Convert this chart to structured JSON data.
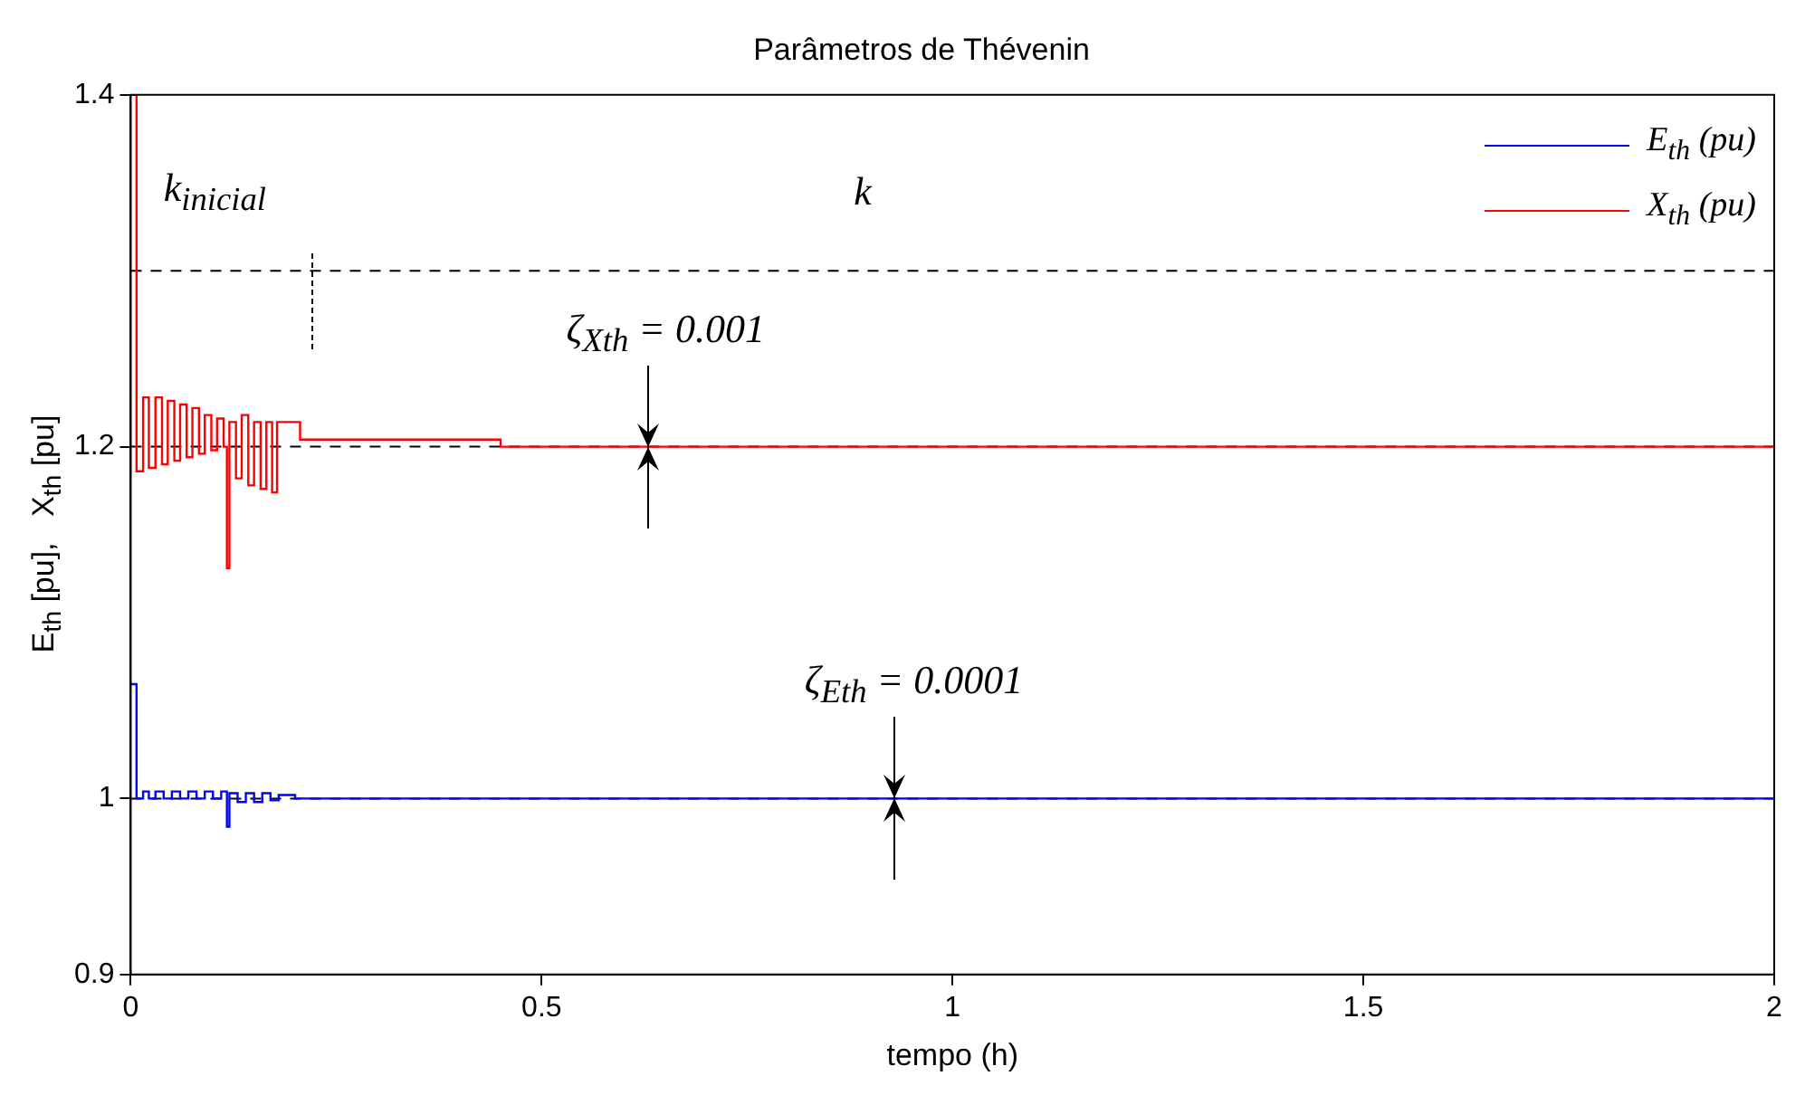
{
  "chart_data": {
    "type": "step",
    "title": "Parâmetros de Thévenin",
    "xlabel": "tempo (h)",
    "ylabel": "E$_{th}$ [pu],   X$_{th}$ [pu]",
    "xlim": [
      0,
      2
    ],
    "xticks": [
      0,
      0.5,
      1,
      1.5,
      2
    ],
    "ylim": [
      0.9,
      1.4
    ],
    "yticks": [
      0.9,
      1,
      1.2,
      1.4
    ],
    "grid": false,
    "legend": "top right",
    "line_style": "solid",
    "series": [
      {
        "name": "E$_{th}$ (pu)",
        "color": "#0000ff",
        "x": [
          0,
          0.007,
          0.015,
          0.022,
          0.03,
          0.04,
          0.05,
          0.06,
          0.07,
          0.08,
          0.09,
          0.1,
          0.11,
          0.117,
          0.12,
          0.13,
          0.14,
          0.15,
          0.16,
          0.17,
          0.18,
          0.19,
          0.2,
          2
        ],
        "values": [
          1.065,
          1.0,
          1.004,
          1.0,
          1.004,
          1.0,
          1.004,
          1.0,
          1.004,
          1.0,
          1.004,
          1.0,
          1.004,
          0.984,
          1.003,
          0.998,
          1.003,
          0.998,
          1.003,
          0.999,
          1.002,
          1.002,
          1.0,
          1.0
        ]
      },
      {
        "name": "X$_{th}$ (pu)",
        "color": "#ff0000",
        "x": [
          0,
          0.007,
          0.015,
          0.022,
          0.03,
          0.038,
          0.045,
          0.053,
          0.06,
          0.068,
          0.075,
          0.083,
          0.09,
          0.098,
          0.105,
          0.113,
          0.117,
          0.12,
          0.128,
          0.135,
          0.143,
          0.15,
          0.158,
          0.165,
          0.172,
          0.178,
          0.183,
          0.206,
          0.45,
          2
        ],
        "values": [
          1.4,
          1.186,
          1.228,
          1.188,
          1.228,
          1.19,
          1.226,
          1.192,
          1.224,
          1.194,
          1.222,
          1.196,
          1.218,
          1.198,
          1.216,
          1.2,
          1.131,
          1.214,
          1.182,
          1.218,
          1.178,
          1.214,
          1.176,
          1.214,
          1.174,
          1.214,
          1.214,
          1.204,
          1.2,
          1.2
        ]
      }
    ],
    "ref_lines": [
      {
        "axis": "y",
        "value": 1.3,
        "color": "#000000",
        "line_style": "dashed"
      },
      {
        "axis": "y",
        "value": 1.2,
        "color": "#000000",
        "line_style": "dashed"
      },
      {
        "axis": "y",
        "value": 1.0,
        "color": "#000000",
        "line_style": "dashed"
      }
    ],
    "annotations": [
      "k$_{inicial}$",
      "k",
      {
        "text": "ζ$_{Xth}$ = 0.001",
        "x": 0.63,
        "y": 1.2
      },
      {
        "text": "ζ$_{Eth}$ = 0.0001",
        "x": 0.93,
        "y": 1.0
      }
    ]
  }
}
